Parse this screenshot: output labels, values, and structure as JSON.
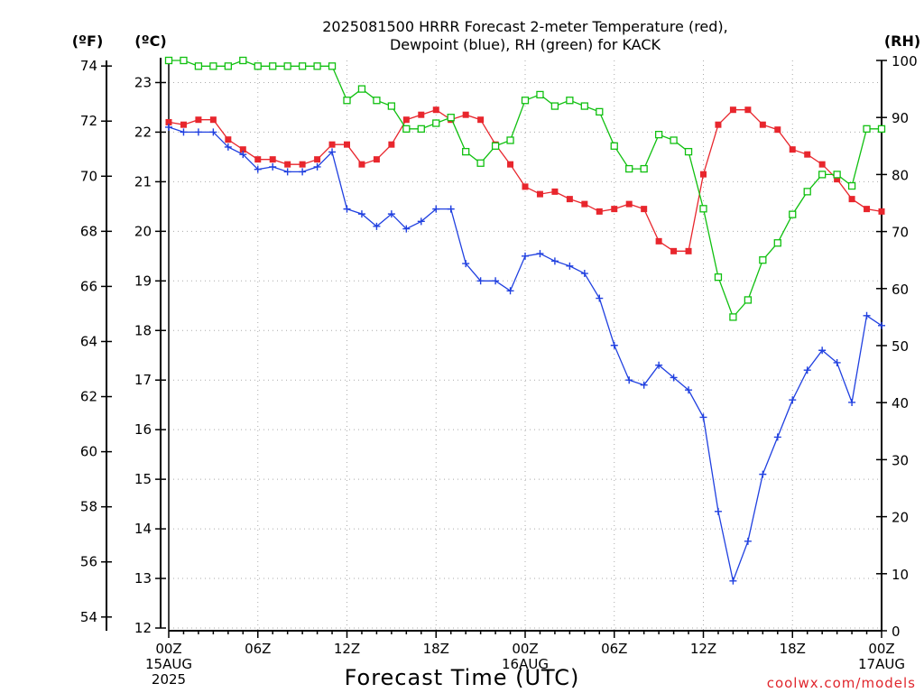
{
  "chart_data": {
    "type": "line",
    "title": [
      "2025081500 HRRR Forecast 2-meter Temperature (red),",
      "Dewpoint (blue), RH (green) for KACK"
    ],
    "xlabel": "Forecast Time (UTC)",
    "credit": "coolwx.com/models",
    "units": {
      "left_outer": "(ºF)",
      "left_inner": "(ºC)",
      "right": "(RH)"
    },
    "x_hours": [
      0,
      1,
      2,
      3,
      4,
      5,
      6,
      7,
      8,
      9,
      10,
      11,
      12,
      13,
      14,
      15,
      16,
      17,
      18,
      19,
      20,
      21,
      22,
      23,
      24,
      25,
      26,
      27,
      28,
      29,
      30,
      31,
      32,
      33,
      34,
      35,
      36,
      37,
      38,
      39,
      40,
      41,
      42,
      43,
      44,
      45,
      46,
      47,
      48
    ],
    "xlim": [
      0,
      48
    ],
    "x_ticks": [
      {
        "h": 0,
        "lines": [
          "00Z",
          "15AUG",
          "2025"
        ]
      },
      {
        "h": 6,
        "lines": [
          "06Z"
        ]
      },
      {
        "h": 12,
        "lines": [
          "12Z"
        ]
      },
      {
        "h": 18,
        "lines": [
          "18Z"
        ]
      },
      {
        "h": 24,
        "lines": [
          "00Z",
          "16AUG"
        ]
      },
      {
        "h": 30,
        "lines": [
          "06Z"
        ]
      },
      {
        "h": 36,
        "lines": [
          "12Z"
        ]
      },
      {
        "h": 42,
        "lines": [
          "18Z"
        ]
      },
      {
        "h": 48,
        "lines": [
          "00Z",
          "17AUG"
        ]
      }
    ],
    "celsius_axis": {
      "ylim": [
        12,
        23.5
      ],
      "ticks": [
        "12",
        "13",
        "14",
        "15",
        "16",
        "17",
        "18",
        "19",
        "20",
        "21",
        "22",
        "23"
      ]
    },
    "fahrenheit_axis": {
      "ticks": [
        "54",
        "56",
        "58",
        "60",
        "62",
        "64",
        "66",
        "68",
        "70",
        "72",
        "74"
      ]
    },
    "rh_axis": {
      "ylim": [
        0,
        100
      ],
      "ticks": [
        "0",
        "10",
        "20",
        "30",
        "40",
        "50",
        "60",
        "70",
        "80",
        "90",
        "100"
      ]
    },
    "grid": true,
    "series": [
      {
        "name": "Temperature",
        "axis": "celsius",
        "color": "#e8262d",
        "marker": "filled-square",
        "values": [
          22.2,
          22.15,
          22.25,
          22.25,
          21.85,
          21.65,
          21.45,
          21.45,
          21.35,
          21.35,
          21.45,
          21.75,
          21.75,
          21.35,
          21.45,
          21.75,
          22.25,
          22.35,
          22.45,
          22.25,
          22.35,
          22.25,
          21.75,
          21.35,
          20.9,
          20.75,
          20.8,
          20.65,
          20.55,
          20.4,
          20.45,
          20.55,
          20.45,
          19.8,
          19.6,
          19.6,
          21.15,
          22.15,
          22.45,
          22.45,
          22.15,
          22.05,
          21.65,
          21.55,
          21.35,
          21.05,
          20.65,
          20.45,
          20.4
        ]
      },
      {
        "name": "Dewpoint",
        "axis": "celsius",
        "color": "#2040e0",
        "marker": "plus",
        "values": [
          22.1,
          22.0,
          22.0,
          22.0,
          21.7,
          21.55,
          21.25,
          21.3,
          21.2,
          21.2,
          21.3,
          21.6,
          20.45,
          20.35,
          20.1,
          20.35,
          20.05,
          20.2,
          20.45,
          20.45,
          19.35,
          19.0,
          19.0,
          18.8,
          19.5,
          19.55,
          19.4,
          19.3,
          19.15,
          18.65,
          17.7,
          17.0,
          16.9,
          17.3,
          17.05,
          16.8,
          16.25,
          14.35,
          12.95,
          13.75,
          15.1,
          15.85,
          16.6,
          17.2,
          17.6,
          17.35,
          16.55,
          18.3,
          18.1
        ]
      },
      {
        "name": "RH",
        "axis": "rh",
        "color": "#10c010",
        "marker": "open-square",
        "values": [
          100,
          100,
          99,
          99,
          99,
          100,
          99,
          99,
          99,
          99,
          99,
          99,
          93,
          95,
          93,
          92,
          88,
          88,
          89,
          90,
          84,
          82,
          85,
          86,
          93,
          94,
          92,
          93,
          92,
          91,
          85,
          81,
          81,
          87,
          86,
          84,
          74,
          62,
          55,
          58,
          65,
          68,
          73,
          77,
          80,
          80,
          78,
          88,
          88
        ]
      }
    ]
  }
}
